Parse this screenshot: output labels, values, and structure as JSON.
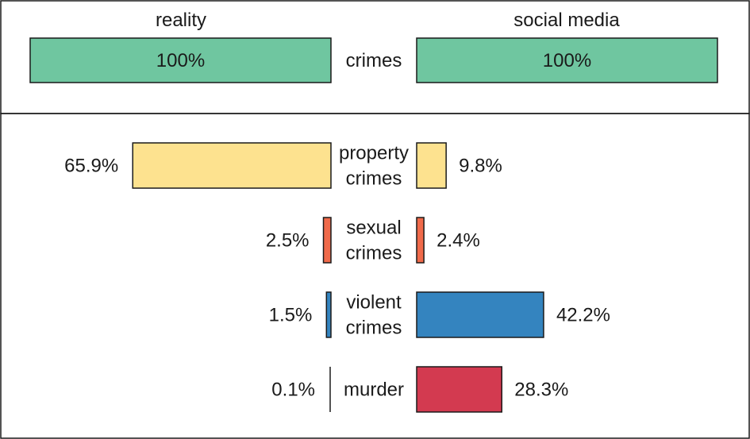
{
  "chart_data": {
    "type": "bar",
    "layout": "back-to-back horizontal bars",
    "sides": [
      "reality",
      "social media"
    ],
    "top_row": {
      "category": "crimes",
      "values": {
        "reality": 100,
        "social media": 100
      },
      "labels": {
        "reality": "100%",
        "social media": "100%"
      },
      "color": "#6fc6a0"
    },
    "categories": [
      {
        "label_lines": [
          "property",
          "crimes"
        ],
        "reality": 65.9,
        "social_media": 9.8,
        "reality_label": "65.9%",
        "social_media_label": "9.8%",
        "color": "#fde28f"
      },
      {
        "label_lines": [
          "sexual",
          "crimes"
        ],
        "reality": 2.5,
        "social_media": 2.4,
        "reality_label": "2.5%",
        "social_media_label": "2.4%",
        "color": "#f06a4a"
      },
      {
        "label_lines": [
          "violent",
          "crimes"
        ],
        "reality": 1.5,
        "social_media": 42.2,
        "reality_label": "1.5%",
        "social_media_label": "42.2%",
        "color": "#3484bf"
      },
      {
        "label_lines": [
          "murder"
        ],
        "reality": 0.1,
        "social_media": 28.3,
        "reality_label": "0.1%",
        "social_media_label": "28.3%",
        "color": "#d33a50"
      }
    ],
    "xlim": [
      0,
      100
    ],
    "grid": false
  }
}
